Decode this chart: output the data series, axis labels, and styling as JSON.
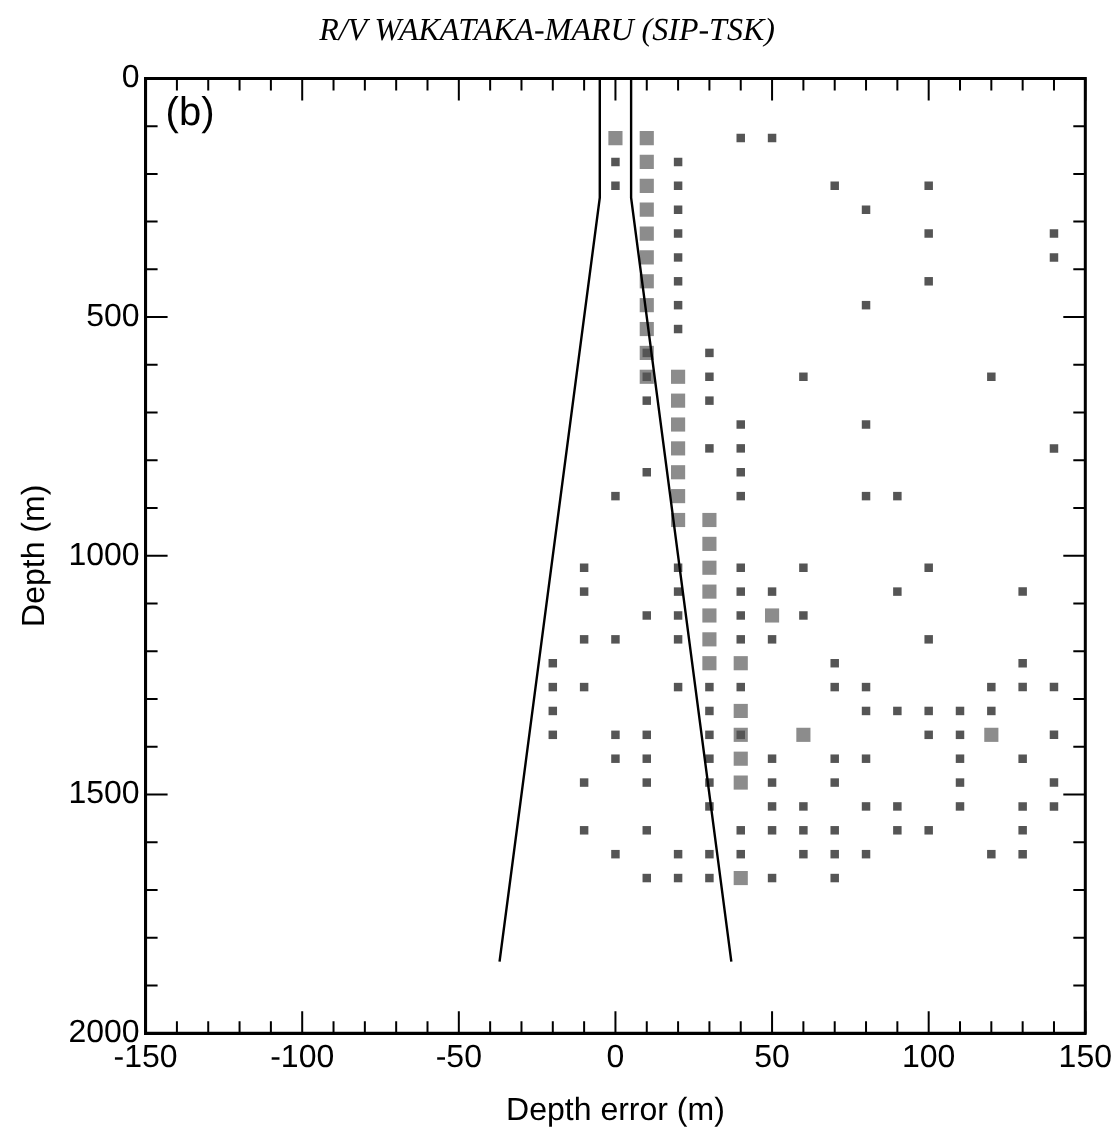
{
  "chart_data": {
    "type": "scatter",
    "title": "R/V WAKATAKA-MARU (SIP-TSK)",
    "xlabel": "Depth error (m)",
    "ylabel": "Depth (m)",
    "annotations": [
      "(b)"
    ],
    "xlim": [
      -150,
      150
    ],
    "ylim": [
      2000,
      0
    ],
    "xticks": [
      -150,
      {
        "value": -140,
        "label": null
      },
      {
        "value": -130,
        "label": null
      },
      {
        "value": -120,
        "label": null
      },
      {
        "value": -110,
        "label": null
      },
      -100,
      {
        "value": -90,
        "label": null
      },
      {
        "value": -80,
        "label": null
      },
      {
        "value": -70,
        "label": null
      },
      {
        "value": -60,
        "label": null
      },
      -50,
      {
        "value": -40,
        "label": null
      },
      {
        "value": -30,
        "label": null
      },
      {
        "value": -20,
        "label": null
      },
      {
        "value": -10,
        "label": null
      },
      0,
      {
        "value": 10,
        "label": null
      },
      {
        "value": 20,
        "label": null
      },
      {
        "value": 30,
        "label": null
      },
      {
        "value": 40,
        "label": null
      },
      50,
      {
        "value": 60,
        "label": null
      },
      {
        "value": 70,
        "label": null
      },
      {
        "value": 80,
        "label": null
      },
      {
        "value": 90,
        "label": null
      },
      100,
      {
        "value": 110,
        "label": null
      },
      {
        "value": 120,
        "label": null
      },
      {
        "value": 130,
        "label": null
      },
      {
        "value": 140,
        "label": null
      },
      150
    ],
    "yticks": [
      0,
      {
        "value": 100,
        "label": null
      },
      {
        "value": 200,
        "label": null
      },
      {
        "value": 300,
        "label": null
      },
      {
        "value": 400,
        "label": null
      },
      500,
      {
        "value": 600,
        "label": null
      },
      {
        "value": 700,
        "label": null
      },
      {
        "value": 800,
        "label": null
      },
      {
        "value": 900,
        "label": null
      },
      1000,
      {
        "value": 1100,
        "label": null
      },
      {
        "value": 1200,
        "label": null
      },
      {
        "value": 1300,
        "label": null
      },
      {
        "value": 1400,
        "label": null
      },
      1500,
      {
        "value": 1600,
        "label": null
      },
      {
        "value": 1700,
        "label": null
      },
      {
        "value": 1800,
        "label": null
      },
      {
        "value": 1900,
        "label": null
      },
      2000
    ],
    "grid": false,
    "legend": false,
    "series": [
      {
        "marker": "square",
        "color": "#8c8c8c",
        "x": [
          0,
          10,
          10,
          10,
          10,
          10,
          10,
          10,
          10,
          10,
          10,
          10,
          20,
          20,
          20,
          20,
          20,
          20,
          20,
          30,
          30,
          30,
          30,
          30,
          30,
          30,
          50,
          40,
          40,
          40,
          60,
          40,
          120,
          40,
          40
        ],
        "values": [
          125,
          125,
          175,
          225,
          275,
          325,
          375,
          425,
          475,
          525,
          575,
          625,
          625,
          675,
          725,
          775,
          825,
          875,
          925,
          925,
          975,
          1025,
          1075,
          1125,
          1175,
          1225,
          1125,
          1225,
          1325,
          1375,
          1375,
          1425,
          1375,
          1475,
          1675
        ]
      },
      {
        "marker": "square",
        "color": "#555555",
        "x": [
          40,
          50,
          0,
          20,
          0,
          20,
          70,
          100,
          20,
          80,
          20,
          100,
          140,
          20,
          140,
          20,
          100,
          20,
          80,
          20,
          10,
          30,
          10,
          30,
          60,
          120,
          10,
          30,
          40,
          80,
          30,
          40,
          140,
          10,
          40,
          0,
          40,
          80,
          90,
          -10,
          20,
          40,
          60,
          100,
          -10,
          20,
          40,
          50,
          90,
          130,
          10,
          20,
          40,
          60,
          -10,
          0,
          20,
          40,
          50,
          100,
          -20,
          70,
          130,
          -20,
          -10,
          20,
          30,
          40,
          70,
          80,
          120,
          130,
          140,
          -20,
          30,
          80,
          90,
          100,
          110,
          120,
          -20,
          0,
          10,
          30,
          40,
          100,
          110,
          140,
          0,
          10,
          30,
          50,
          70,
          80,
          110,
          130,
          -10,
          10,
          30,
          50,
          70,
          110,
          140,
          30,
          50,
          60,
          80,
          90,
          110,
          130,
          140,
          -10,
          10,
          40,
          50,
          60,
          70,
          90,
          100,
          130,
          0,
          20,
          30,
          40,
          60,
          70,
          80,
          120,
          130,
          10,
          20,
          30,
          50,
          70
        ],
        "values": [
          125,
          125,
          175,
          175,
          225,
          225,
          225,
          225,
          275,
          275,
          325,
          325,
          325,
          375,
          375,
          425,
          425,
          475,
          475,
          525,
          575,
          575,
          625,
          625,
          625,
          625,
          675,
          675,
          725,
          725,
          775,
          775,
          775,
          825,
          825,
          875,
          875,
          875,
          875,
          1025,
          1025,
          1025,
          1025,
          1025,
          1075,
          1075,
          1075,
          1075,
          1075,
          1075,
          1125,
          1125,
          1125,
          1125,
          1175,
          1175,
          1175,
          1175,
          1175,
          1175,
          1225,
          1225,
          1225,
          1275,
          1275,
          1275,
          1275,
          1275,
          1275,
          1275,
          1275,
          1275,
          1275,
          1325,
          1325,
          1325,
          1325,
          1325,
          1325,
          1325,
          1375,
          1375,
          1375,
          1375,
          1375,
          1375,
          1375,
          1375,
          1425,
          1425,
          1425,
          1425,
          1425,
          1425,
          1425,
          1425,
          1475,
          1475,
          1475,
          1475,
          1475,
          1475,
          1475,
          1525,
          1525,
          1525,
          1525,
          1525,
          1525,
          1525,
          1525,
          1575,
          1575,
          1575,
          1575,
          1575,
          1575,
          1575,
          1575,
          1575,
          1625,
          1625,
          1625,
          1625,
          1625,
          1625,
          1625,
          1625,
          1625,
          1675,
          1675,
          1675,
          1675,
          1675
        ]
      },
      {
        "type": "line",
        "marker": "none",
        "color": "#000000",
        "x": [
          -5,
          -5,
          -37
        ],
        "values": [
          0,
          250,
          1850
        ]
      },
      {
        "type": "line",
        "marker": "none",
        "color": "#000000",
        "x": [
          5,
          5,
          37
        ],
        "values": [
          0,
          250,
          1850
        ]
      }
    ]
  }
}
